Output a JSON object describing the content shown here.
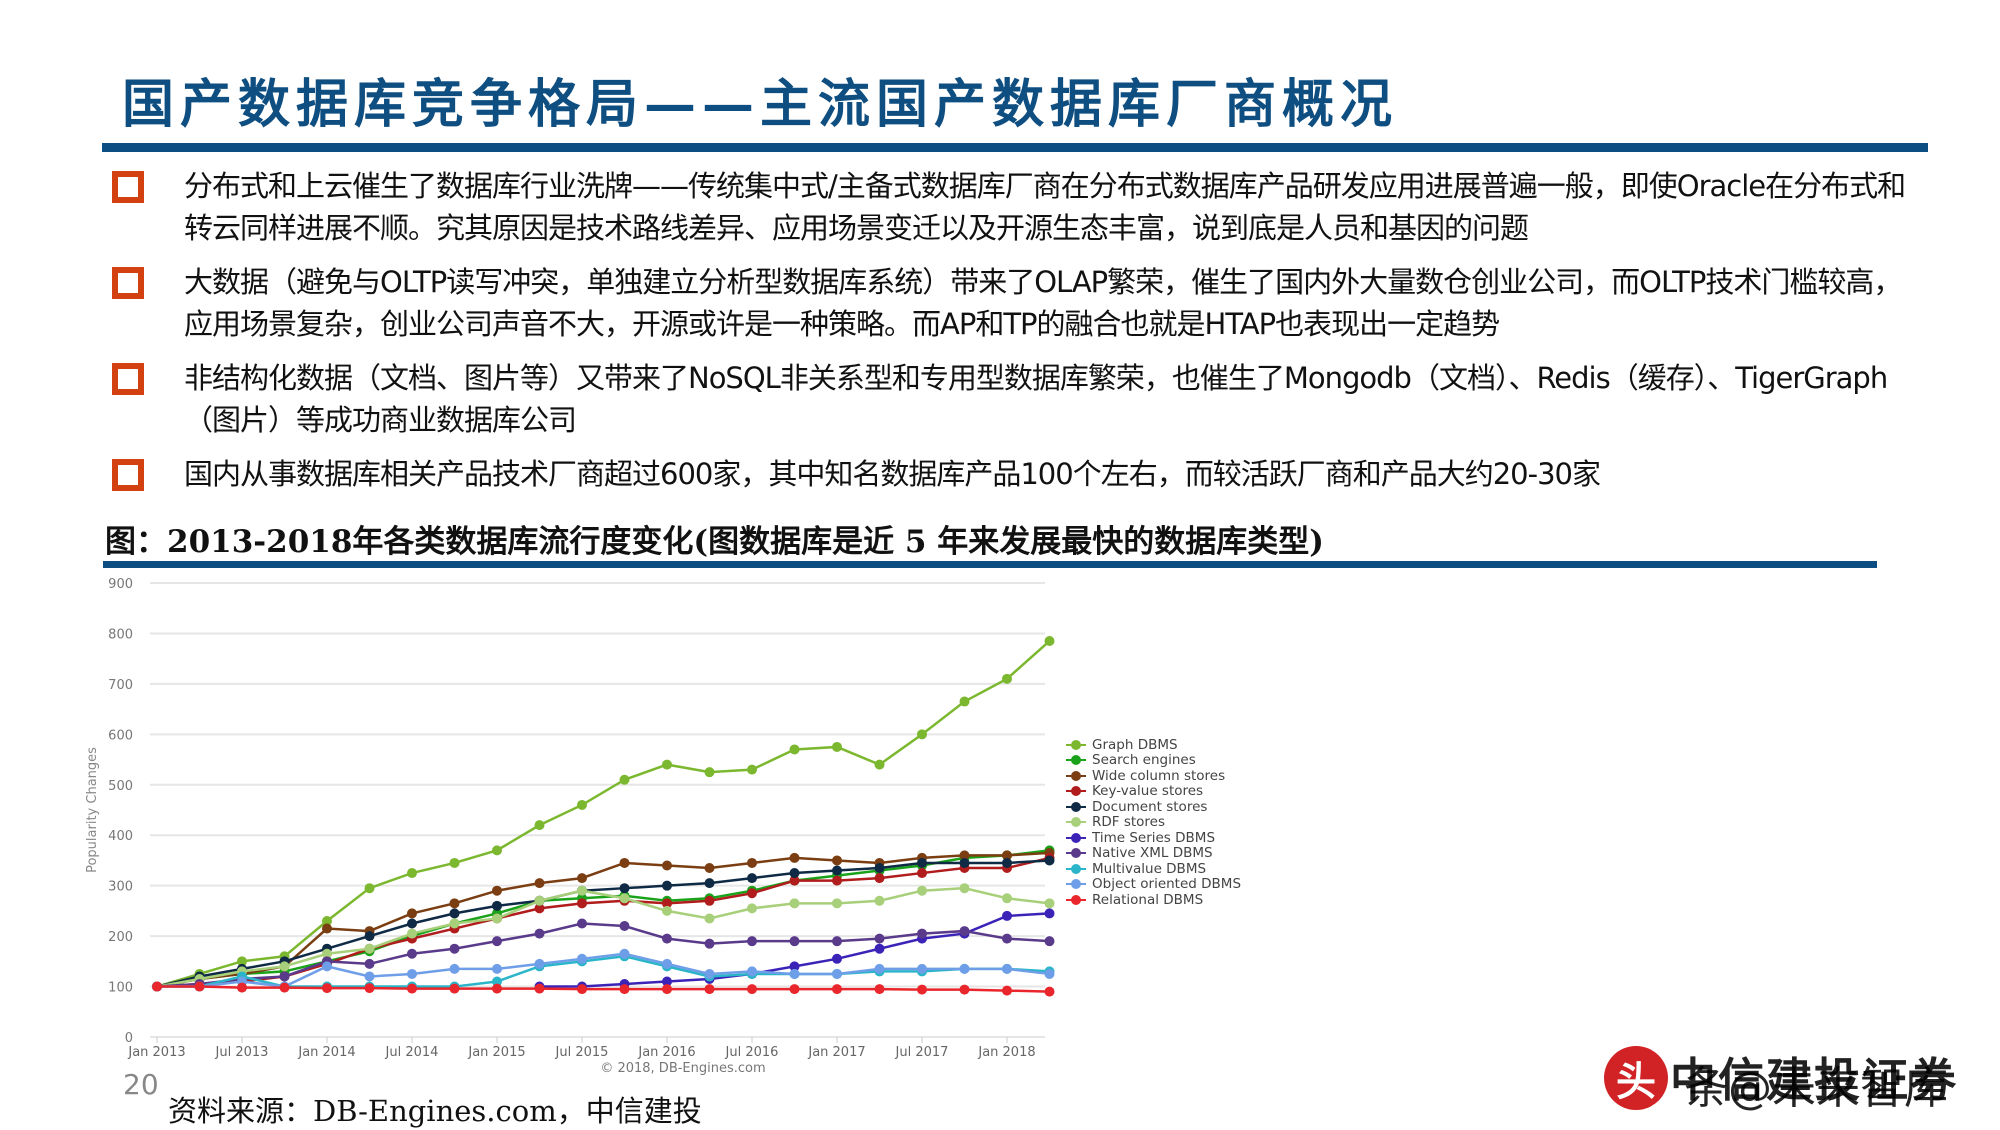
{
  "slide": {
    "title": "国产数据库竞争格局——主流国产数据库厂商概况",
    "page_number": "20",
    "colors": {
      "accent_blue": "#0d4e82",
      "bullet_orange": "#d2410f"
    }
  },
  "bullets": [
    {
      "text": "分布式和上云催生了数据库行业洗牌——传统集中式/主备式数据库厂商在分布式数据库产品研发应用进展普遍一般，即使Oracle在分布式和转云同样进展不顺。究其原因是技术路线差异、应用场景变迁以及开源生态丰富，说到底是人员和基因的问题"
    },
    {
      "text": "大数据（避免与OLTP读写冲突，单独建立分析型数据库系统）带来了OLAP繁荣，催生了国内外大量数仓创业公司，而OLTP技术门槛较高，应用场景复杂，创业公司声音不大，开源或许是一种策略。而AP和TP的融合也就是HTAP也表现出一定趋势"
    },
    {
      "text": "非结构化数据（文档、图片等）又带来了NoSQL非关系型和专用型数据库繁荣，也催生了Mongodb（文档）、Redis（缓存）、TigerGraph（图片）等成功商业数据库公司"
    },
    {
      "text": "国内从事数据库相关产品技术厂商超过600家，其中知名数据库产品100个左右，而较活跃厂商和产品大约20-30家"
    }
  ],
  "figure": {
    "caption": "图：2013-2018年各类数据库流行度变化(图数据库是近 5 年来发展最快的数据库类型)",
    "source": "资料来源：DB-Engines.com，中信建投",
    "copyright": "© 2018, DB-Engines.com"
  },
  "watermark": {
    "seal": "头",
    "line1": "中信建投证券",
    "line2": "条@未来智库"
  },
  "chart_data": {
    "type": "line",
    "title": "",
    "xlabel": "",
    "ylabel": "Popularity Changes",
    "ylim": [
      0,
      900
    ],
    "yticks": [
      0,
      100,
      200,
      300,
      400,
      500,
      600,
      700,
      800,
      900
    ],
    "xtick_labels": [
      "Jan 2013",
      "Jul 2013",
      "Jan 2014",
      "Jul 2014",
      "Jan 2015",
      "Jul 2015",
      "Jan 2016",
      "Jul 2016",
      "Jan 2017",
      "Jul 2017",
      "Jan 2018"
    ],
    "grid": true,
    "legend_position": "right",
    "x_start": "Jan 2013",
    "x_step": "quarterly",
    "x": [
      "2013-01",
      "2013-04",
      "2013-07",
      "2013-10",
      "2014-01",
      "2014-04",
      "2014-07",
      "2014-10",
      "2015-01",
      "2015-04",
      "2015-07",
      "2015-10",
      "2016-01",
      "2016-04",
      "2016-07",
      "2016-10",
      "2017-01",
      "2017-04",
      "2017-07",
      "2017-10",
      "2018-01",
      "2018-04"
    ],
    "series": [
      {
        "name": "Graph DBMS",
        "color": "#7cb82f",
        "values": [
          100,
          125,
          150,
          160,
          230,
          295,
          325,
          345,
          370,
          420,
          460,
          510,
          540,
          525,
          530,
          570,
          575,
          540,
          600,
          665,
          710,
          785
        ]
      },
      {
        "name": "Search engines",
        "color": "#1aa31a",
        "values": [
          100,
          115,
          125,
          130,
          150,
          170,
          200,
          225,
          245,
          270,
          275,
          280,
          270,
          275,
          290,
          310,
          320,
          330,
          340,
          355,
          360,
          370
        ]
      },
      {
        "name": "Wide column stores",
        "color": "#7a3e12",
        "values": [
          100,
          115,
          125,
          140,
          215,
          210,
          245,
          265,
          290,
          305,
          315,
          345,
          340,
          335,
          345,
          355,
          350,
          345,
          355,
          360,
          360,
          365
        ]
      },
      {
        "name": "Key-value stores",
        "color": "#b11c1c",
        "values": [
          100,
          105,
          110,
          120,
          145,
          175,
          195,
          215,
          235,
          255,
          265,
          270,
          265,
          270,
          285,
          310,
          310,
          315,
          325,
          335,
          335,
          355
        ]
      },
      {
        "name": "Document stores",
        "color": "#0f2a45",
        "values": [
          100,
          120,
          135,
          150,
          175,
          200,
          225,
          245,
          260,
          270,
          290,
          295,
          300,
          305,
          315,
          325,
          330,
          335,
          345,
          345,
          345,
          350
        ]
      },
      {
        "name": "RDF stores",
        "color": "#a8cf7a",
        "values": [
          100,
          115,
          130,
          140,
          165,
          175,
          205,
          225,
          235,
          270,
          290,
          275,
          250,
          235,
          255,
          265,
          265,
          270,
          290,
          295,
          275,
          265
        ]
      },
      {
        "name": "Time Series DBMS",
        "color": "#3c23b8",
        "values": [
          null,
          null,
          null,
          null,
          null,
          null,
          null,
          null,
          null,
          100,
          100,
          105,
          110,
          115,
          125,
          140,
          155,
          175,
          195,
          205,
          240,
          245
        ]
      },
      {
        "name": "Native XML DBMS",
        "color": "#5a3a8a",
        "values": [
          100,
          105,
          115,
          120,
          150,
          145,
          165,
          175,
          190,
          205,
          225,
          220,
          195,
          185,
          190,
          190,
          190,
          195,
          205,
          210,
          195,
          190
        ]
      },
      {
        "name": "Multivalue DBMS",
        "color": "#2bb5c9",
        "values": [
          100,
          100,
          120,
          100,
          100,
          100,
          100,
          100,
          110,
          140,
          150,
          160,
          140,
          120,
          125,
          125,
          125,
          130,
          130,
          135,
          135,
          130
        ]
      },
      {
        "name": "Object oriented DBMS",
        "color": "#6f9ee8",
        "values": [
          100,
          100,
          110,
          100,
          140,
          120,
          125,
          135,
          135,
          145,
          155,
          165,
          145,
          125,
          130,
          125,
          125,
          135,
          135,
          135,
          135,
          125
        ]
      },
      {
        "name": "Relational DBMS",
        "color": "#e8262b",
        "values": [
          100,
          100,
          98,
          98,
          97,
          97,
          96,
          96,
          96,
          96,
          95,
          95,
          95,
          95,
          95,
          95,
          95,
          95,
          94,
          94,
          92,
          90
        ]
      }
    ]
  }
}
